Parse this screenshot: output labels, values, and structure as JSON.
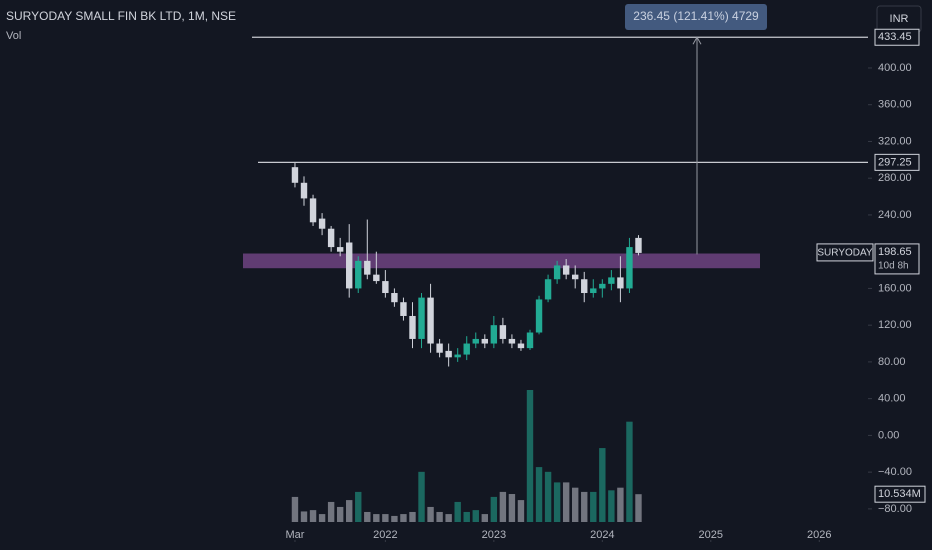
{
  "chart_data": {
    "type": "candlestick",
    "title": "SURYODAY SMALL FIN BK LTD, 1M, NSE",
    "currency": "INR",
    "remaining": "10d 8h",
    "xlim": [
      -32.63,
      63.39
    ],
    "xticks": [
      {
        "value": 0,
        "label": "Mar"
      },
      {
        "value": 10,
        "label": "2022"
      },
      {
        "value": 22,
        "label": "2023"
      },
      {
        "value": 34,
        "label": "2024"
      },
      {
        "value": 46,
        "label": "2025"
      },
      {
        "value": 58,
        "label": "2026"
      }
    ],
    "ylim": [
      -103,
      474
    ],
    "yticks": [
      {
        "value": 400,
        "label": "400.00"
      },
      {
        "value": 360,
        "label": "360.00"
      },
      {
        "value": 320,
        "label": "320.00"
      },
      {
        "value": 280,
        "label": "280.00"
      },
      {
        "value": 240,
        "label": "240.00"
      },
      {
        "value": 160,
        "label": "160.00"
      },
      {
        "value": 120,
        "label": "120.00"
      },
      {
        "value": 80,
        "label": "80.00"
      },
      {
        "value": 40,
        "label": "40.00"
      },
      {
        "value": 0,
        "label": "0.00"
      },
      {
        "value": -40,
        "label": "−40.00"
      },
      {
        "value": -80,
        "label": "−80.00"
      }
    ],
    "series": [
      {
        "name": "SURYODAY",
        "up_color": "#22ab94",
        "down_color": "#d1d4dc",
        "open": [
          292,
          275,
          258,
          236,
          225,
          205,
          210,
          160,
          190,
          175,
          168,
          155,
          145,
          130,
          105,
          150,
          100,
          92,
          85,
          88,
          100,
          105,
          100,
          120,
          105,
          100,
          95,
          112,
          148,
          170,
          185,
          175,
          170,
          155,
          160,
          165,
          172,
          160,
          215
        ],
        "high": [
          297,
          282,
          262,
          242,
          228,
          215,
          230,
          195,
          235,
          200,
          180,
          160,
          150,
          145,
          155,
          165,
          105,
          100,
          95,
          108,
          112,
          110,
          130,
          128,
          110,
          104,
          115,
          152,
          175,
          190,
          192,
          185,
          178,
          170,
          170,
          180,
          195,
          215,
          218
        ],
        "low": [
          270,
          250,
          228,
          218,
          200,
          195,
          150,
          155,
          170,
          165,
          150,
          140,
          125,
          95,
          95,
          90,
          85,
          75,
          80,
          82,
          95,
          95,
          95,
          100,
          95,
          92,
          93,
          110,
          145,
          165,
          170,
          160,
          145,
          150,
          150,
          158,
          145,
          155,
          196
        ],
        "close": [
          275,
          258,
          232,
          225,
          205,
          200,
          160,
          190,
          175,
          168,
          155,
          145,
          130,
          105,
          150,
          100,
          90,
          85,
          88,
          100,
          105,
          100,
          120,
          105,
          100,
          95,
          112,
          148,
          170,
          185,
          175,
          170,
          155,
          160,
          165,
          172,
          160,
          205,
          198.65
        ]
      },
      {
        "name": "Vol",
        "up_color": "#22ab94",
        "down_color": "#d1d4dc",
        "values": [
          9.5,
          4,
          4.5,
          3,
          7.6,
          5.7,
          8.3,
          11.4,
          3.8,
          3,
          3,
          2.3,
          3,
          3.8,
          19,
          5.7,
          3.8,
          3,
          7.6,
          3.8,
          4.5,
          3,
          9.5,
          11.4,
          10.6,
          8.3,
          50,
          20.8,
          19,
          15,
          15,
          13,
          11.4,
          11.4,
          28,
          12,
          13,
          38,
          10.534
        ],
        "last_label": "10.534M"
      }
    ],
    "hlines": [
      433.45,
      297.25
    ],
    "zone": [
      182,
      198
    ],
    "measure": {
      "from": 197,
      "label": "236.45 (121.41%) 4729"
    }
  }
}
